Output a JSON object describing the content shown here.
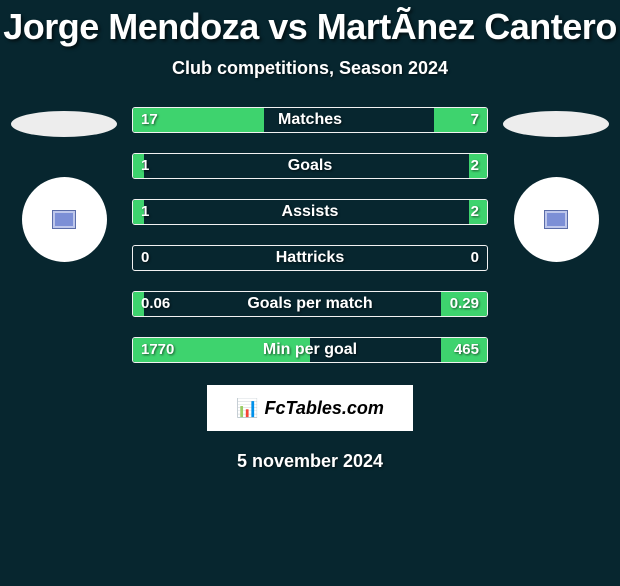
{
  "header": {
    "player1": "Jorge Mendoza",
    "vs": "vs",
    "player2": "MartÃ­nez Cantero",
    "title": "Jorge Mendoza vs MartÃ­nez Cantero",
    "subtitle": "Club competitions, Season 2024"
  },
  "colors": {
    "background": "#07262f",
    "bar_fill": "#3ed36e",
    "bar_border": "#f2f2f2",
    "brand_bg": "#ffffff",
    "text": "#ffffff"
  },
  "stats": [
    {
      "label": "Matches",
      "left_val": "17",
      "right_val": "7",
      "left_pct": 37,
      "right_pct": 15
    },
    {
      "label": "Goals",
      "left_val": "1",
      "right_val": "2",
      "left_pct": 3,
      "right_pct": 5
    },
    {
      "label": "Assists",
      "left_val": "1",
      "right_val": "2",
      "left_pct": 3,
      "right_pct": 5
    },
    {
      "label": "Hattricks",
      "left_val": "0",
      "right_val": "0",
      "left_pct": 0,
      "right_pct": 0
    },
    {
      "label": "Goals per match",
      "left_val": "0.06",
      "right_val": "0.29",
      "left_pct": 3,
      "right_pct": 13
    },
    {
      "label": "Min per goal",
      "left_val": "1770",
      "right_val": "465",
      "left_pct": 50,
      "right_pct": 13
    }
  ],
  "brand": {
    "label": "FcTables.com",
    "icon": "📊"
  },
  "footer": {
    "date": "5 november 2024"
  }
}
